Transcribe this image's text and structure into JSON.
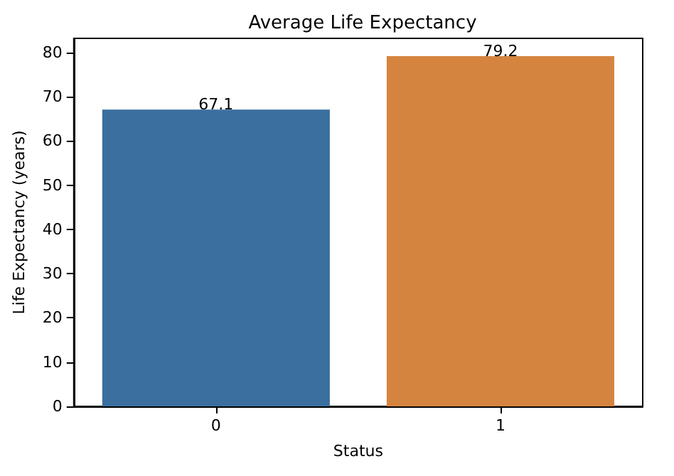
{
  "chart_data": {
    "type": "bar",
    "title": "Average Life Expectancy",
    "xlabel": "Status",
    "ylabel": "Life Expectancy (years)",
    "categories": [
      "0",
      "1"
    ],
    "values": [
      67.1,
      79.2
    ],
    "colors": [
      "#3a6f9f",
      "#d5843f"
    ],
    "ylim": [
      0,
      83.2
    ],
    "yticks": [
      0,
      10,
      20,
      30,
      40,
      50,
      60,
      70,
      80
    ],
    "data_labels": true,
    "grid": false
  }
}
